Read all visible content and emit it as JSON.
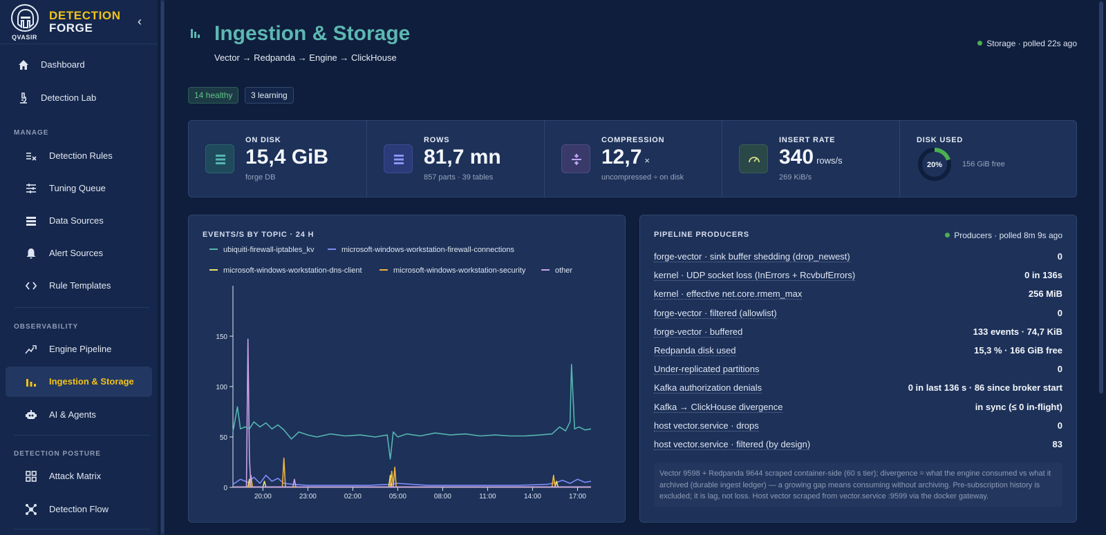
{
  "brand": {
    "line1": "DETECTION",
    "line2": "FORGE",
    "company": "QVASIR"
  },
  "sidebar": {
    "top_items": [
      {
        "label": "Dashboard",
        "icon": "home-icon"
      },
      {
        "label": "Detection Lab",
        "icon": "microscope-icon"
      }
    ],
    "sections": [
      {
        "title": "MANAGE",
        "items": [
          {
            "label": "Detection Rules",
            "icon": "rules-icon"
          },
          {
            "label": "Tuning Queue",
            "icon": "sliders-icon"
          },
          {
            "label": "Data Sources",
            "icon": "list-icon"
          },
          {
            "label": "Alert Sources",
            "icon": "bell-icon"
          },
          {
            "label": "Rule Templates",
            "icon": "code-icon"
          }
        ]
      },
      {
        "title": "OBSERVABILITY",
        "items": [
          {
            "label": "Engine Pipeline",
            "icon": "trend-icon"
          },
          {
            "label": "Ingestion & Storage",
            "icon": "bar-chart-icon",
            "active": true
          },
          {
            "label": "AI & Agents",
            "icon": "robot-icon"
          }
        ]
      },
      {
        "title": "DETECTION POSTURE",
        "items": [
          {
            "label": "Attack Matrix",
            "icon": "grid-icon"
          },
          {
            "label": "Detection Flow",
            "icon": "network-icon"
          }
        ]
      }
    ]
  },
  "header": {
    "title": "Ingestion & Storage",
    "subtitle": "Vector → Redpanda → Engine → ClickHouse",
    "status": "Storage · polled 22s ago",
    "badges": {
      "healthy": "14 healthy",
      "learning": "3 learning"
    }
  },
  "stats": [
    {
      "label": "ON DISK",
      "value": "15,4 GiB",
      "unit": "",
      "sub": "forge DB",
      "icon": "database-icon"
    },
    {
      "label": "ROWS",
      "value": "81,7 mn",
      "unit": "",
      "sub": "857 parts · 39 tables",
      "icon": "rows-icon"
    },
    {
      "label": "COMPRESSION",
      "value": "12,7",
      "unit": "×",
      "sub": "uncompressed ÷ on disk",
      "icon": "divide-icon"
    },
    {
      "label": "INSERT RATE",
      "value": "340",
      "unit": "rows/s",
      "sub": "269 KiB/s",
      "icon": "gauge-icon"
    },
    {
      "label": "DISK USED",
      "value": "20%",
      "percent": 20,
      "sub": "156 GiB free",
      "icon": "donut-icon"
    }
  ],
  "chart": {
    "title": "EVENTS/S BY TOPIC · 24 H",
    "legend": [
      {
        "name": "ubiquiti-firewall-iptables_kv",
        "color": "#56b6b0"
      },
      {
        "name": "microsoft-windows-workstation-firewall-connections",
        "color": "#7c8cf8"
      },
      {
        "name": "microsoft-windows-workstation-dns-client",
        "color": "#f2e36b"
      },
      {
        "name": "microsoft-windows-workstation-security",
        "color": "#f2b53c"
      },
      {
        "name": "other",
        "color": "#c9a4e8"
      }
    ]
  },
  "chart_data": {
    "type": "line",
    "title": "EVENTS/S BY TOPIC · 24 H",
    "xlabel": "",
    "ylabel": "",
    "x_ticks": [
      "20:00",
      "23:00",
      "02:00",
      "05:00",
      "08:00",
      "11:00",
      "14:00",
      "17:00"
    ],
    "y_ticks": [
      0,
      50,
      100,
      150
    ],
    "xlim": [
      18.0,
      41.9
    ],
    "ylim": [
      0,
      200
    ],
    "grid": false,
    "legend_position": "top",
    "series": [
      {
        "name": "ubiquiti-firewall-iptables_kv",
        "color": "#56b6b0",
        "x": [
          18.0,
          18.3,
          18.5,
          18.8,
          19.1,
          19.4,
          19.8,
          20.2,
          20.6,
          21.0,
          21.4,
          21.9,
          22.4,
          23.0,
          23.6,
          24.5,
          25.5,
          26.5,
          27.5,
          28.3,
          28.5,
          28.7,
          29.0,
          29.6,
          30.5,
          31.5,
          32.5,
          33.5,
          34.5,
          35.5,
          36.5,
          37.5,
          38.5,
          39.3,
          39.8,
          40.2,
          40.5,
          40.6,
          40.8,
          41.1,
          41.5,
          41.9
        ],
        "y": [
          55,
          80,
          58,
          60,
          58,
          65,
          60,
          64,
          58,
          62,
          57,
          48,
          55,
          52,
          50,
          53,
          51,
          52,
          50,
          52,
          28,
          55,
          50,
          53,
          51,
          54,
          52,
          53,
          51,
          52,
          51,
          51,
          52,
          53,
          60,
          56,
          65,
          122,
          58,
          60,
          57,
          58
        ]
      },
      {
        "name": "microsoft-windows-workstation-firewall-connections",
        "color": "#7c8cf8",
        "x": [
          18.0,
          18.5,
          19.0,
          19.4,
          19.8,
          20.2,
          20.6,
          21.0,
          21.4,
          22.0,
          23.0,
          25.0,
          27.0,
          28.5,
          29.0,
          31.0,
          33.0,
          35.0,
          37.0,
          39.0,
          39.6,
          40.0,
          40.5,
          41.0,
          41.5,
          41.9
        ],
        "y": [
          3,
          8,
          5,
          10,
          4,
          12,
          6,
          9,
          4,
          3,
          2,
          2,
          2,
          3,
          4,
          2,
          2,
          2,
          2,
          3,
          5,
          7,
          4,
          8,
          5,
          6
        ]
      },
      {
        "name": "microsoft-windows-workstation-dns-client",
        "color": "#f2e36b",
        "x": [
          18.0,
          19.0,
          19.1,
          19.2,
          20.0,
          20.1,
          20.2,
          23.0,
          28.4,
          28.5,
          28.6,
          29.0,
          39.5,
          39.6,
          39.7,
          41.9
        ],
        "y": [
          0.5,
          0.5,
          8,
          0.5,
          0.5,
          6,
          0.5,
          0.5,
          0.5,
          12,
          0.5,
          0.5,
          0.5,
          6,
          0.5,
          0.5
        ]
      },
      {
        "name": "microsoft-windows-workstation-security",
        "color": "#f2b53c",
        "x": [
          18.0,
          19.1,
          19.2,
          19.3,
          21.3,
          21.4,
          21.5,
          28.5,
          28.6,
          28.7,
          28.8,
          28.9,
          39.3,
          39.4,
          39.5,
          41.9
        ],
        "y": [
          0.5,
          0.5,
          12,
          0.5,
          0.5,
          29,
          0.5,
          0.5,
          16,
          1,
          20,
          0.5,
          0.5,
          12,
          0.5,
          0.5
        ]
      },
      {
        "name": "other",
        "color": "#c9a4e8",
        "x": [
          18.0,
          18.9,
          19.0,
          19.1,
          19.2,
          22.0,
          22.1,
          22.2,
          41.9
        ],
        "y": [
          0.5,
          0.5,
          147,
          30,
          0.5,
          0.5,
          8,
          0.5,
          0.5
        ]
      }
    ]
  },
  "producers": {
    "title": "PIPELINE PRODUCERS",
    "status": "Producers · polled 8m 9s ago",
    "rows": [
      {
        "label": "forge-vector · sink buffer shedding (drop_newest)",
        "value": "0"
      },
      {
        "label": "kernel · UDP socket loss (InErrors + RcvbufErrors)",
        "value": "0 in 136s"
      },
      {
        "label": "kernel · effective net.core.rmem_max",
        "value": "256 MiB"
      },
      {
        "label": "forge-vector · filtered (allowlist)",
        "value": "0"
      },
      {
        "label": "forge-vector · buffered",
        "value": "133 events · 74,7 KiB"
      },
      {
        "label": "Redpanda disk used",
        "value": "15,3 % · 166 GiB free"
      },
      {
        "label": "Under-replicated partitions",
        "value": "0"
      },
      {
        "label": "Kafka authorization denials",
        "value": "0 in last 136 s · 86 since broker start"
      },
      {
        "label": "Kafka → ClickHouse divergence",
        "value": "in sync (≤ 0 in-flight)"
      },
      {
        "label": "host vector.service · drops",
        "value": "0"
      },
      {
        "label": "host vector.service · filtered (by design)",
        "value": "83"
      }
    ],
    "note": "Vector 9598 + Redpanda 9644 scraped container-side (60 s tier); divergence = what the engine consumed vs what it archived (durable ingest ledger) — a growing gap means consuming without archiving. Pre-subscription history is excluded; it is lag, not loss. Host vector scraped from vector.service :9599 via the docker gateway."
  },
  "colors": {
    "accent": "#f2c318",
    "title": "#5cb8b2",
    "ok": "#4caf50"
  }
}
